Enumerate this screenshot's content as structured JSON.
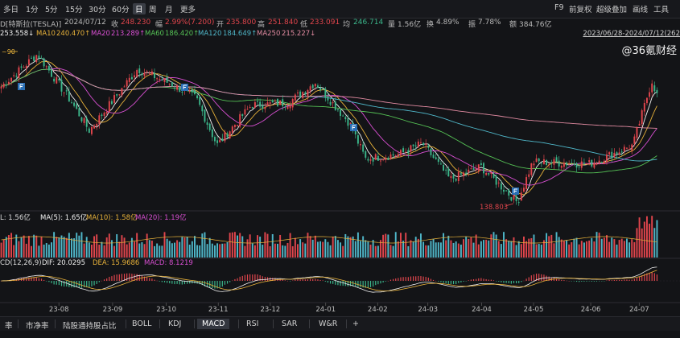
{
  "toolbar": {
    "periods": [
      "多日",
      "1分",
      "5分",
      "15分",
      "30分",
      "60分",
      "日",
      "周",
      "月",
      "更多"
    ],
    "active_period": "日",
    "right": [
      "F9",
      "前复权",
      "超级叠加",
      "画线",
      "工具"
    ]
  },
  "info": {
    "name": "D[特斯拉(TESLA)]",
    "date": "2024/07/12",
    "close_label": "收",
    "close": "248.230",
    "change_label": "幅",
    "change": "2.99%(7.200)",
    "open_label": "开",
    "open": "235.800",
    "high_label": "高",
    "high": "251.840",
    "low_label": "低",
    "low": "233.091",
    "avg_label": "均",
    "avg": "246.714",
    "vol_label": "量",
    "volume": "1.56亿",
    "turn_label": "换",
    "turnover": "4.89%",
    "amp_label": "振",
    "amplitude": "7.78%",
    "amt_label": "额",
    "amount": "384.76亿"
  },
  "ma": {
    "ma5_partial": "253.558↓",
    "ma10_label": "MA10",
    "ma10": "240.470↑",
    "ma20_label": "MA20",
    "ma20": "213.289↑",
    "ma60_label": "MA60",
    "ma60": "186.420↑",
    "ma120_label": "MA120",
    "ma120": "184.649↑",
    "ma250_label": "MA250",
    "ma250": "215.227↓"
  },
  "range": "2023/06/28-2024/07/12(262",
  "watermark": "@36氪财经",
  "price_marks": {
    "high_label": "~90",
    "low_label": "138.803"
  },
  "volume_bar": {
    "vol_prefix": "L: 1.56亿",
    "ma5": "MA(5): 1.65亿",
    "ma10": "MA(10): 1.58亿",
    "ma20": "MA(20): 1.19亿"
  },
  "macd_bar": {
    "title": "CD(12,26,9)",
    "dif": "DIF: 20.0295",
    "dea": "DEA: 15.9686",
    "macd": "MACD: 8.1219"
  },
  "x_ticks": [
    "23-08",
    "23-09",
    "23-10",
    "23-11",
    "23-12",
    "24-01",
    "24-02",
    "24-03",
    "24-04",
    "24-05",
    "24-06",
    "24-07"
  ],
  "bottom_tabs": [
    "率",
    "市净率",
    "陆股通持股占比",
    "BOLL",
    "KDJ",
    "MACD",
    "RSI",
    "SAR",
    "W&R",
    "+"
  ],
  "active_tab": "MACD",
  "colors": {
    "up": "#e0454c",
    "down": "#3bb58a",
    "ma5": "#f2f2f2",
    "ma10": "#e8b23a",
    "ma20": "#d84fd2",
    "ma60": "#55c255",
    "ma120": "#4fb6c8",
    "ma250": "#e08aa0",
    "dif": "#f0f0f0",
    "dea": "#e8b23a"
  },
  "chart_data": {
    "type": "candlestick",
    "title": "特斯拉(TESLA)",
    "x_range": [
      "2023/06/28",
      "2024/07/12"
    ],
    "price_points": [
      [
        "2023-06-28",
        257
      ],
      [
        "2023-07-19",
        290
      ],
      [
        "2023-08-08",
        240
      ],
      [
        "2023-08-18",
        212
      ],
      [
        "2023-09-15",
        275
      ],
      [
        "2023-10-06",
        258
      ],
      [
        "2023-10-19",
        245
      ],
      [
        "2023-10-31",
        197
      ],
      [
        "2023-11-20",
        238
      ],
      [
        "2023-12-11",
        240
      ],
      [
        "2023-12-27",
        261
      ],
      [
        "2024-01-16",
        219
      ],
      [
        "2024-01-25",
        183
      ],
      [
        "2024-02-14",
        188
      ],
      [
        "2024-02-27",
        199
      ],
      [
        "2024-03-14",
        162
      ],
      [
        "2024-04-01",
        175
      ],
      [
        "2024-04-22",
        138.8
      ],
      [
        "2024-05-01",
        180
      ],
      [
        "2024-06-03",
        178
      ],
      [
        "2024-06-28",
        197
      ],
      [
        "2024-07-09",
        263
      ],
      [
        "2024-07-12",
        248.23
      ]
    ],
    "markers": {
      "high_label": "~90",
      "low": 138.803
    },
    "lines": [
      "MA5",
      "MA10",
      "MA20",
      "MA60",
      "MA120",
      "MA250"
    ]
  }
}
